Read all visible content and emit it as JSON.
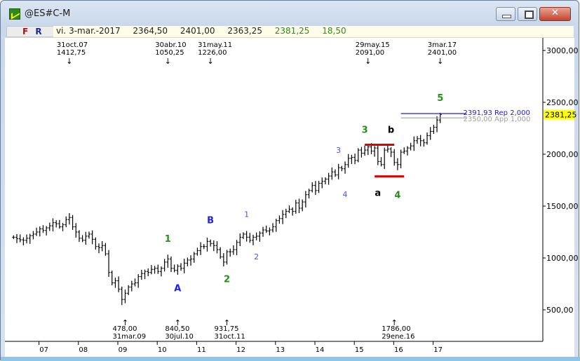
{
  "window": {
    "title": "@ES#C-M",
    "icon": "chart-app-icon"
  },
  "infobar": {
    "f": "F",
    "r": "R",
    "date": "vi. 3-mar.-2017",
    "open": "2364,50",
    "high": "2401,00",
    "low": "2363,25",
    "close": "2381,25",
    "change": "18,50"
  },
  "colors": {
    "bars": "#000000",
    "wave_green": "#2a8a1e",
    "wave_blue": "#2020e0",
    "sub_wave_blue": "#5050f0",
    "channel_red": "#e00000",
    "price_tag": "#ffff00",
    "rep_line": "#2020d0",
    "app_line": "#a0a0a0"
  },
  "y_axis": {
    "ticks": [
      "3000,00",
      "2500,00",
      "2000,00",
      "1500,00",
      "1000,00",
      "500,00"
    ],
    "tick_values": [
      3000,
      2500,
      2000,
      1500,
      1000,
      500
    ],
    "last_price": "2381,25",
    "last_value": 2381.25
  },
  "x_axis": {
    "labels": [
      "07",
      "08",
      "09",
      "10",
      "11",
      "12",
      "13",
      "14",
      "15",
      "16",
      "17"
    ],
    "years": [
      2007,
      2008,
      2009,
      2010,
      2011,
      2012,
      2013,
      2014,
      2015,
      2016,
      2017
    ]
  },
  "series": {
    "start": "2006-05",
    "interval": "monthly",
    "close": [
      1200,
      1185,
      1175,
      1170,
      1190,
      1215,
      1230,
      1250,
      1280,
      1265,
      1290,
      1310,
      1340,
      1330,
      1300,
      1320,
      1370,
      1390,
      1300,
      1250,
      1190,
      1170,
      1210,
      1230,
      1180,
      1110,
      1100,
      1120,
      1040,
      860,
      760,
      780,
      700,
      600,
      660,
      720,
      750,
      760,
      820,
      850,
      870,
      860,
      890,
      900,
      870,
      900,
      960,
      990,
      900,
      880,
      920,
      900,
      950,
      980,
      990,
      1040,
      1070,
      1110,
      1110,
      1160,
      1140,
      1120,
      1080,
      1010,
      960,
      1060,
      1060,
      1080,
      1150,
      1200,
      1230,
      1200,
      1170,
      1200,
      1210,
      1240,
      1270,
      1260,
      1270,
      1300,
      1360,
      1380,
      1420,
      1450,
      1470,
      1450,
      1530,
      1480,
      1540,
      1610,
      1650,
      1700,
      1650,
      1720,
      1740,
      1760,
      1790,
      1830,
      1800,
      1870,
      1860,
      1900,
      1960,
      1970,
      1940,
      2040,
      2010,
      2040,
      2070,
      2030,
      2060,
      1930,
      1900,
      2040,
      2050,
      2020,
      1920,
      1900,
      2020,
      2030,
      2060,
      2080,
      2130,
      2150,
      2130,
      2110,
      2180,
      2220,
      2260,
      2330,
      2381.25
    ]
  },
  "top_markers": [
    {
      "date": "31oct.07",
      "price": "1412,75",
      "m": 17,
      "v": 1412.75
    },
    {
      "date": "30abr.10",
      "price": "1050,25",
      "m": 47,
      "v": 1050.25
    },
    {
      "date": "31may.11",
      "price": "1226,00",
      "m": 60,
      "v": 1226
    },
    {
      "date": "29may.15",
      "price": "2091,00",
      "m": 108,
      "v": 2091
    },
    {
      "date": "3mar.17",
      "price": "2401,00",
      "m": 130,
      "v": 2401
    }
  ],
  "bottom_markers": [
    {
      "price": "478,00",
      "date": "31mar.09",
      "m": 34,
      "v": 478
    },
    {
      "price": "840,50",
      "date": "30jul.10",
      "m": 50,
      "v": 840.5
    },
    {
      "price": "931,75",
      "date": "31oct.11",
      "m": 65,
      "v": 931.75
    },
    {
      "price": "1786,00",
      "date": "29ene.16",
      "m": 116,
      "v": 1786
    }
  ],
  "wave_labels": [
    {
      "text": "1",
      "color": "green",
      "m": 47,
      "v": 1060,
      "pos": "above"
    },
    {
      "text": "A",
      "color": "blue",
      "m": 50,
      "v": 840,
      "pos": "below"
    },
    {
      "text": "B",
      "color": "blue",
      "m": 60,
      "v": 1240,
      "pos": "above"
    },
    {
      "text": "2",
      "color": "green",
      "m": 65,
      "v": 930,
      "pos": "below"
    },
    {
      "text": "1",
      "color": "subblue",
      "m": 71,
      "v": 1300,
      "pos": "above"
    },
    {
      "text": "2",
      "color": "subblue",
      "m": 74,
      "v": 1150,
      "pos": "below"
    },
    {
      "text": "3",
      "color": "subblue",
      "m": 99,
      "v": 1920,
      "pos": "above"
    },
    {
      "text": "4",
      "color": "subblue",
      "m": 101,
      "v": 1750,
      "pos": "below"
    },
    {
      "text": "3",
      "color": "green",
      "m": 107,
      "v": 2110,
      "pos": "above"
    },
    {
      "text": "a",
      "color": "black",
      "m": 111,
      "v": 1760,
      "pos": "below"
    },
    {
      "text": "b",
      "color": "black",
      "m": 115,
      "v": 2110,
      "pos": "above"
    },
    {
      "text": "4",
      "color": "green",
      "m": 117,
      "v": 1740,
      "pos": "below"
    },
    {
      "text": "5",
      "color": "green",
      "m": 130,
      "v": 2420,
      "pos": "above"
    }
  ],
  "channel_lines": [
    {
      "v": 2091,
      "m_from": 107,
      "m_to": 116
    },
    {
      "v": 1786,
      "m_from": 110,
      "m_to": 119
    }
  ],
  "levels": [
    {
      "label": "2391,93 Rep 2,000",
      "value": 2391.93,
      "type": "rep"
    },
    {
      "label": "2350,00 App 1,000",
      "value": 2350,
      "type": "app"
    }
  ]
}
